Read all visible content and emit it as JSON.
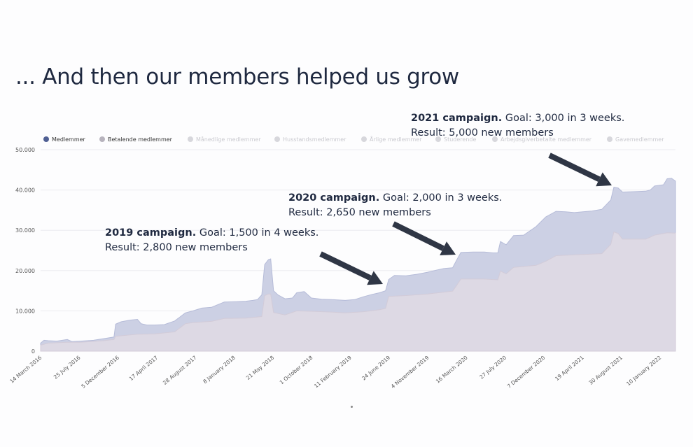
{
  "slide": {
    "title": "... And then our members helped us grow"
  },
  "annotations": [
    {
      "bold": "2019 campaign.",
      "rest": " Goal: 1,500 in 4 weeks.",
      "line2": "Result: 2,800 new members"
    },
    {
      "bold": "2020 campaign.",
      "rest": " Goal: 2,000 in 3 weeks.",
      "line2": "Result: 2,650 new members"
    },
    {
      "bold": "2021 campaign.",
      "rest": " Goal: 3,000 in 3 weeks.",
      "line2": "Result: 5,000 new members"
    }
  ],
  "chart_data": {
    "type": "area",
    "legend_position": "top",
    "legend": [
      {
        "name": "Medlemmer",
        "color": "#4f5f93",
        "active": true
      },
      {
        "name": "Betalende medlemmer",
        "color": "#b7b3bd",
        "active": true
      },
      {
        "name": "Månedlige medlemmer",
        "color": "#d7d7dc",
        "active": false
      },
      {
        "name": "Husstandsmedlemmer",
        "color": "#d7d7dc",
        "active": false
      },
      {
        "name": "Årlige medlemmer",
        "color": "#d7d7dc",
        "active": false
      },
      {
        "name": "Studerende",
        "color": "#d7d7dc",
        "active": false
      },
      {
        "name": "Arbejdsgiverbetalte medlemmer",
        "color": "#d7d7dc",
        "active": false
      },
      {
        "name": "Gavemedlemmer",
        "color": "#d7d7dc",
        "active": false
      }
    ],
    "y_ticks": [
      "0",
      "10.000",
      "20.000",
      "30.000",
      "40.000",
      "50.000"
    ],
    "ylim": [
      0,
      50000
    ],
    "grid": true,
    "x_tick_labels": [
      "14 March 2016",
      "25 July 2016",
      "5 December 2016",
      "17 April 2017",
      "28 August 2017",
      "8 January 2018",
      "21 May 2018",
      "1 October 2018",
      "11 February 2019",
      "24 June 2019",
      "4 November 2019",
      "16 March 2020",
      "27 July 2020",
      "7 December 2020",
      "19 April 2021",
      "30 August 2021",
      "10 January 2022"
    ],
    "series": [
      {
        "name": "Medlemmer",
        "color": "#c9cde3",
        "points": [
          [
            "2016-03-14",
            2000
          ],
          [
            "2016-03-26",
            2700
          ],
          [
            "2016-04-10",
            2600
          ],
          [
            "2016-05-10",
            2500
          ],
          [
            "2016-06-15",
            2900
          ],
          [
            "2016-07-01",
            2400
          ],
          [
            "2016-08-01",
            2500
          ],
          [
            "2016-09-15",
            2700
          ],
          [
            "2016-10-20",
            3100
          ],
          [
            "2016-11-25",
            3500
          ],
          [
            "2016-12-01",
            6700
          ],
          [
            "2016-12-20",
            7300
          ],
          [
            "2017-01-20",
            7700
          ],
          [
            "2017-02-15",
            7900
          ],
          [
            "2017-02-28",
            6800
          ],
          [
            "2017-03-20",
            6500
          ],
          [
            "2017-04-17",
            6500
          ],
          [
            "2017-05-20",
            6600
          ],
          [
            "2017-06-25",
            7500
          ],
          [
            "2017-08-01",
            9500
          ],
          [
            "2017-08-28",
            10000
          ],
          [
            "2017-09-28",
            10700
          ],
          [
            "2017-11-01",
            10900
          ],
          [
            "2017-12-15",
            12200
          ],
          [
            "2018-01-25",
            12300
          ],
          [
            "2018-02-28",
            12400
          ],
          [
            "2018-03-25",
            12600
          ],
          [
            "2018-04-10",
            12800
          ],
          [
            "2018-04-25",
            14000
          ],
          [
            "2018-05-05",
            21500
          ],
          [
            "2018-05-18",
            22700
          ],
          [
            "2018-05-26",
            22900
          ],
          [
            "2018-06-05",
            15000
          ],
          [
            "2018-06-20",
            14000
          ],
          [
            "2018-07-15",
            13000
          ],
          [
            "2018-08-10",
            13200
          ],
          [
            "2018-08-25",
            14500
          ],
          [
            "2018-09-20",
            14800
          ],
          [
            "2018-10-15",
            13200
          ],
          [
            "2018-11-20",
            12900
          ],
          [
            "2018-12-25",
            12800
          ],
          [
            "2019-02-10",
            12600
          ],
          [
            "2019-03-15",
            12800
          ],
          [
            "2019-04-15",
            13500
          ],
          [
            "2019-05-15",
            14100
          ],
          [
            "2019-06-10",
            14500
          ],
          [
            "2019-07-01",
            15000
          ],
          [
            "2019-07-12",
            17800
          ],
          [
            "2019-08-01",
            18800
          ],
          [
            "2019-09-10",
            18700
          ],
          [
            "2019-10-20",
            19100
          ],
          [
            "2019-11-25",
            19600
          ],
          [
            "2019-12-25",
            20100
          ],
          [
            "2020-01-20",
            20500
          ],
          [
            "2020-02-20",
            20700
          ],
          [
            "2020-03-05",
            22600
          ],
          [
            "2020-03-20",
            24500
          ],
          [
            "2020-05-01",
            24600
          ],
          [
            "2020-06-10",
            24600
          ],
          [
            "2020-07-10",
            24400
          ],
          [
            "2020-07-27",
            24400
          ],
          [
            "2020-08-05",
            27200
          ],
          [
            "2020-08-25",
            26400
          ],
          [
            "2020-09-20",
            28700
          ],
          [
            "2020-10-25",
            28800
          ],
          [
            "2020-12-07",
            30900
          ],
          [
            "2021-01-10",
            33300
          ],
          [
            "2021-02-15",
            34700
          ],
          [
            "2021-03-20",
            34600
          ],
          [
            "2021-04-20",
            34400
          ],
          [
            "2021-05-20",
            34600
          ],
          [
            "2021-06-20",
            34800
          ],
          [
            "2021-07-25",
            35200
          ],
          [
            "2021-08-25",
            37500
          ],
          [
            "2021-09-05",
            40700
          ],
          [
            "2021-09-20",
            40500
          ],
          [
            "2021-10-05",
            39500
          ],
          [
            "2021-11-20",
            39600
          ],
          [
            "2021-12-25",
            39700
          ],
          [
            "2022-01-10",
            40000
          ],
          [
            "2022-01-25",
            41000
          ],
          [
            "2022-02-25",
            41300
          ],
          [
            "2022-03-10",
            42800
          ],
          [
            "2022-03-25",
            42900
          ],
          [
            "2022-04-08",
            42200
          ]
        ]
      },
      {
        "name": "Betalende medlemmer",
        "color": "#dfd9e3",
        "points": [
          [
            "2016-03-14",
            1500
          ],
          [
            "2016-04-10",
            2000
          ],
          [
            "2016-06-15",
            2200
          ],
          [
            "2016-08-01",
            2200
          ],
          [
            "2016-10-20",
            2600
          ],
          [
            "2016-11-25",
            2900
          ],
          [
            "2016-12-01",
            3700
          ],
          [
            "2017-02-15",
            4200
          ],
          [
            "2017-04-17",
            4300
          ],
          [
            "2017-06-25",
            4800
          ],
          [
            "2017-08-01",
            6800
          ],
          [
            "2017-08-28",
            7100
          ],
          [
            "2017-11-01",
            7400
          ],
          [
            "2017-12-15",
            8100
          ],
          [
            "2018-02-28",
            8200
          ],
          [
            "2018-04-25",
            8600
          ],
          [
            "2018-05-05",
            13800
          ],
          [
            "2018-05-18",
            14200
          ],
          [
            "2018-05-26",
            14200
          ],
          [
            "2018-06-05",
            9600
          ],
          [
            "2018-07-15",
            9000
          ],
          [
            "2018-08-25",
            10000
          ],
          [
            "2018-10-15",
            9900
          ],
          [
            "2018-12-25",
            9700
          ],
          [
            "2019-02-10",
            9500
          ],
          [
            "2019-04-15",
            9800
          ],
          [
            "2019-06-10",
            10300
          ],
          [
            "2019-07-01",
            10600
          ],
          [
            "2019-07-12",
            13600
          ],
          [
            "2019-09-10",
            13800
          ],
          [
            "2019-11-25",
            14200
          ],
          [
            "2020-02-20",
            14900
          ],
          [
            "2020-03-05",
            16300
          ],
          [
            "2020-03-20",
            17900
          ],
          [
            "2020-06-10",
            17900
          ],
          [
            "2020-07-27",
            17700
          ],
          [
            "2020-08-05",
            19900
          ],
          [
            "2020-08-25",
            19200
          ],
          [
            "2020-09-20",
            20800
          ],
          [
            "2020-12-07",
            21300
          ],
          [
            "2021-01-10",
            22300
          ],
          [
            "2021-02-15",
            23700
          ],
          [
            "2021-04-20",
            23900
          ],
          [
            "2021-06-20",
            24100
          ],
          [
            "2021-07-25",
            24200
          ],
          [
            "2021-08-25",
            26500
          ],
          [
            "2021-09-05",
            29600
          ],
          [
            "2021-09-20",
            29200
          ],
          [
            "2021-10-05",
            27800
          ],
          [
            "2021-12-25",
            27800
          ],
          [
            "2022-01-10",
            28300
          ],
          [
            "2022-01-25",
            28800
          ],
          [
            "2022-03-10",
            29400
          ],
          [
            "2022-04-08",
            29300
          ]
        ]
      }
    ]
  }
}
